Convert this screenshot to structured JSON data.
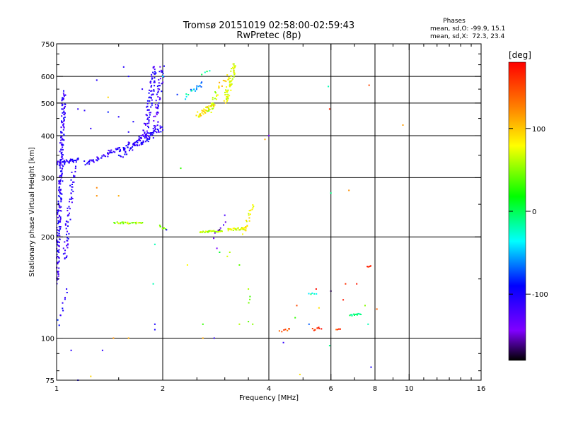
{
  "chart_data": {
    "type": "scatter",
    "title": "Tromsø 20151019 02:58:00-02:59:43",
    "subtitle": "RwPretec (8p)",
    "xlabel": "Frequency [MHz]",
    "ylabel": "Stationary phase Virtual Height [km]",
    "x_scale": "log",
    "y_scale": "log",
    "xlim": [
      1,
      16
    ],
    "ylim": [
      75,
      750
    ],
    "x_ticks": [
      1,
      2,
      4,
      6,
      8,
      10,
      16
    ],
    "y_ticks": [
      75,
      100,
      200,
      300,
      400,
      500,
      600,
      750
    ],
    "grid": true,
    "phase_box": {
      "heading": "Phases",
      "line_o": "mean, sd,O: -99.9, 15.1",
      "line_x": "mean, sd,X:  72.3, 23.4"
    },
    "colorbar": {
      "label": "[deg]",
      "range": [
        -180,
        180
      ],
      "ticks": [
        100,
        0,
        -100
      ]
    },
    "traces": [
      {
        "from": [
          1.2,
          330
        ],
        "to": [
          1.7,
          385
        ],
        "n": 70,
        "phase": -110,
        "jitter": 0.035
      },
      {
        "from": [
          1.5,
          350
        ],
        "to": [
          1.85,
          395
        ],
        "n": 45,
        "phase": -105,
        "jitter": 0.04
      },
      {
        "from": [
          1.7,
          390
        ],
        "to": [
          2.0,
          420
        ],
        "n": 45,
        "phase": -108,
        "jitter": 0.035
      },
      {
        "from": [
          1.78,
          400
        ],
        "to": [
          1.9,
          640
        ],
        "n": 80,
        "phase": -110,
        "jitter": 0.035
      },
      {
        "from": [
          1.9,
          420
        ],
        "to": [
          2.0,
          640
        ],
        "n": 50,
        "phase": -115,
        "jitter": 0.035
      },
      {
        "from": [
          1.0,
          330
        ],
        "to": [
          1.15,
          340
        ],
        "n": 40,
        "phase": -105,
        "jitter": 0.03
      },
      {
        "from": [
          1.0,
          145
        ],
        "to": [
          1.05,
          540
        ],
        "n": 230,
        "phase": -108,
        "jitter": 0.025
      },
      {
        "from": [
          1.05,
          170
        ],
        "to": [
          1.12,
          320
        ],
        "n": 60,
        "phase": -110,
        "jitter": 0.03
      },
      {
        "from": [
          1.0,
          108
        ],
        "to": [
          1.07,
          140
        ],
        "n": 12,
        "phase": -100,
        "jitter": 0.03
      },
      {
        "from": [
          1.45,
          220
        ],
        "to": [
          1.75,
          220
        ],
        "n": 28,
        "phase": 55,
        "jitter": 0.012
      },
      {
        "from": [
          1.95,
          215
        ],
        "to": [
          2.05,
          212
        ],
        "n": 8,
        "phase": 55,
        "jitter": 0.02
      },
      {
        "from": [
          2.55,
          207
        ],
        "to": [
          2.95,
          208
        ],
        "n": 30,
        "phase": 60,
        "jitter": 0.01
      },
      {
        "from": [
          3.05,
          210
        ],
        "to": [
          3.45,
          212
        ],
        "n": 28,
        "phase": 70,
        "jitter": 0.015
      },
      {
        "from": [
          3.4,
          205
        ],
        "to": [
          3.6,
          250
        ],
        "n": 20,
        "phase": 80,
        "jitter": 0.02
      },
      {
        "from": [
          2.8,
          200
        ],
        "to": [
          3.0,
          220
        ],
        "n": 6,
        "phase": -130,
        "jitter": 0.02
      },
      {
        "from": [
          2.5,
          460
        ],
        "to": [
          2.8,
          490
        ],
        "n": 40,
        "phase": 85,
        "jitter": 0.03
      },
      {
        "from": [
          2.7,
          470
        ],
        "to": [
          2.85,
          540
        ],
        "n": 20,
        "phase": 60,
        "jitter": 0.03
      },
      {
        "from": [
          3.0,
          500
        ],
        "to": [
          3.2,
          650
        ],
        "n": 60,
        "phase": 75,
        "jitter": 0.035
      },
      {
        "from": [
          2.85,
          550
        ],
        "to": [
          3.05,
          600
        ],
        "n": 10,
        "phase": 95,
        "jitter": 0.03
      },
      {
        "from": [
          2.4,
          540
        ],
        "to": [
          2.6,
          570
        ],
        "n": 14,
        "phase": -60,
        "jitter": 0.025
      },
      {
        "from": [
          2.3,
          515
        ],
        "to": [
          2.4,
          540
        ],
        "n": 5,
        "phase": -30,
        "jitter": 0.02
      },
      {
        "from": [
          2.6,
          610
        ],
        "to": [
          2.7,
          620
        ],
        "n": 4,
        "phase": -5,
        "jitter": 0.015
      },
      {
        "from": [
          4.3,
          105
        ],
        "to": [
          4.6,
          106
        ],
        "n": 8,
        "phase": 150,
        "jitter": 0.015
      },
      {
        "from": [
          5.3,
          106
        ],
        "to": [
          5.6,
          107
        ],
        "n": 9,
        "phase": 165,
        "jitter": 0.015
      },
      {
        "from": [
          6.2,
          106
        ],
        "to": [
          6.4,
          106
        ],
        "n": 4,
        "phase": 150,
        "jitter": 0.01
      },
      {
        "from": [
          6.8,
          117
        ],
        "to": [
          7.3,
          118
        ],
        "n": 14,
        "phase": -10,
        "jitter": 0.01
      },
      {
        "from": [
          7.6,
          163
        ],
        "to": [
          7.8,
          164
        ],
        "n": 5,
        "phase": 175,
        "jitter": 0.005
      },
      {
        "from": [
          5.2,
          135
        ],
        "to": [
          5.45,
          136
        ],
        "n": 5,
        "phase": -20,
        "jitter": 0.01
      },
      {
        "from": [
          3.5,
          128
        ],
        "to": [
          3.55,
          133
        ],
        "n": 3,
        "phase": 40,
        "jitter": 0.01
      }
    ],
    "points": [
      [
        1.3,
        585,
        -105
      ],
      [
        1.25,
        420,
        -110
      ],
      [
        1.2,
        475,
        -108
      ],
      [
        1.15,
        480,
        -110
      ],
      [
        1.35,
        92,
        -110
      ],
      [
        1.1,
        92,
        -108
      ],
      [
        1.15,
        75,
        -100
      ],
      [
        1.45,
        100,
        120
      ],
      [
        1.25,
        77,
        95
      ],
      [
        1.6,
        100,
        110
      ],
      [
        1.4,
        520,
        95
      ],
      [
        1.4,
        470,
        -85
      ],
      [
        1.3,
        265,
        120
      ],
      [
        1.5,
        265,
        110
      ],
      [
        1.3,
        280,
        125
      ],
      [
        1.9,
        190,
        -20
      ],
      [
        1.88,
        145,
        -20
      ],
      [
        1.9,
        110,
        -100
      ],
      [
        1.9,
        106,
        -100
      ],
      [
        2.05,
        210,
        -100
      ],
      [
        2.25,
        320,
        30
      ],
      [
        2.35,
        165,
        80
      ],
      [
        2.6,
        110,
        30
      ],
      [
        2.6,
        100,
        110
      ],
      [
        2.8,
        100,
        -110
      ],
      [
        2.85,
        185,
        -140
      ],
      [
        2.9,
        180,
        10
      ],
      [
        2.9,
        210,
        -170
      ],
      [
        3.0,
        232,
        -120
      ],
      [
        3.05,
        175,
        70
      ],
      [
        3.1,
        180,
        60
      ],
      [
        3.3,
        165,
        40
      ],
      [
        3.3,
        110,
        60
      ],
      [
        3.5,
        112,
        40
      ],
      [
        3.5,
        140,
        60
      ],
      [
        3.6,
        110,
        50
      ],
      [
        3.9,
        390,
        110
      ],
      [
        4.0,
        400,
        -140
      ],
      [
        4.4,
        97,
        -110
      ],
      [
        4.75,
        115,
        30
      ],
      [
        4.8,
        125,
        150
      ],
      [
        4.9,
        78,
        90
      ],
      [
        5.2,
        110,
        -70
      ],
      [
        5.45,
        140,
        175
      ],
      [
        5.55,
        123,
        90
      ],
      [
        5.9,
        560,
        -20
      ],
      [
        5.95,
        480,
        165
      ],
      [
        6.0,
        270,
        -10
      ],
      [
        6.0,
        138,
        -170
      ],
      [
        5.95,
        95,
        -10
      ],
      [
        6.5,
        130,
        170
      ],
      [
        6.6,
        145,
        160
      ],
      [
        6.75,
        275,
        120
      ],
      [
        7.1,
        145,
        170
      ],
      [
        7.5,
        125,
        50
      ],
      [
        7.65,
        110,
        -20
      ],
      [
        7.7,
        565,
        150
      ],
      [
        7.8,
        82,
        -100
      ],
      [
        8.1,
        122,
        140
      ],
      [
        9.6,
        430,
        115
      ],
      [
        1.6,
        410,
        -105
      ],
      [
        1.65,
        440,
        -100
      ],
      [
        1.95,
        500,
        -100
      ],
      [
        2.2,
        530,
        -80
      ],
      [
        1.5,
        455,
        -105
      ],
      [
        1.75,
        550,
        -110
      ],
      [
        1.6,
        600,
        -100
      ],
      [
        1.55,
        640,
        -105
      ],
      [
        1.85,
        580,
        -110
      ],
      [
        2.0,
        600,
        -30
      ]
    ]
  }
}
